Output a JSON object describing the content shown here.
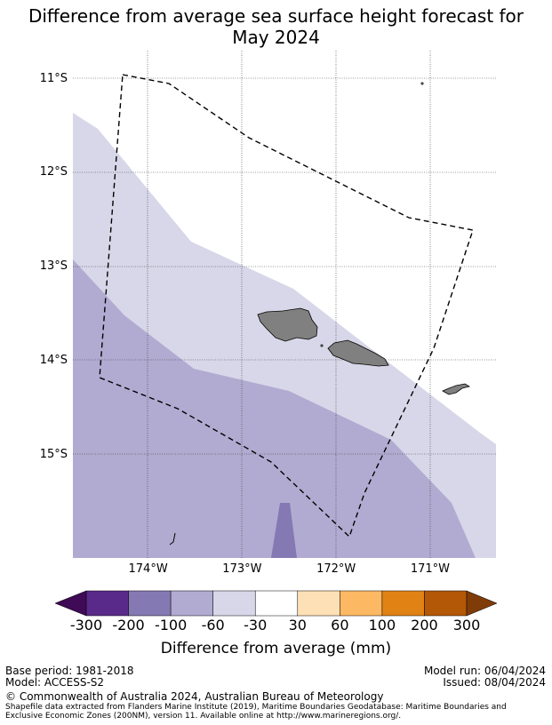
{
  "title_line1": "Difference from average sea surface height forecast for",
  "title_line2": "May 2024",
  "map": {
    "lat_labels": [
      {
        "value": -11,
        "text": "11°S"
      },
      {
        "value": -12,
        "text": "12°S"
      },
      {
        "value": -13,
        "text": "13°S"
      },
      {
        "value": -14,
        "text": "14°S"
      },
      {
        "value": -15,
        "text": "15°S"
      }
    ],
    "lon_labels": [
      {
        "value": -174,
        "text": "174°W"
      },
      {
        "value": -173,
        "text": "173°W"
      },
      {
        "value": -172,
        "text": "172°W"
      },
      {
        "value": -171,
        "text": "171°W"
      }
    ],
    "lon_range": [
      -174.8,
      -170.3
    ],
    "lat_range": [
      -16.1,
      -10.7
    ],
    "band_colors": {
      "minus_60_to_minus_30": "#d7d7e9",
      "minus_100_to_minus_60": "#b1abd1",
      "minus_200_to_minus_100": "#8579b3",
      "land": "#808080"
    }
  },
  "colorbar": {
    "label": "Difference from average (mm)",
    "ticks": [
      "-300",
      "-200",
      "-100",
      "-60",
      "-30",
      "30",
      "60",
      "100",
      "200",
      "300"
    ],
    "colors": [
      "#5a2a8a",
      "#8579b3",
      "#b1abd1",
      "#d7d7e9",
      "#ffffff",
      "#fee0b6",
      "#fdb863",
      "#e08214",
      "#b35806"
    ],
    "extend_low_color": "#3f0a56",
    "extend_high_color": "#7f3b08"
  },
  "footer": {
    "base_period": "Base period: 1981-2018",
    "model": "Model: ACCESS-S2",
    "model_run": "Model run: 06/04/2024",
    "issued": "Issued: 08/04/2024",
    "copyright": "© Commonwealth of Australia 2024, Australian Bureau of Meteorology",
    "shapefile_line1": "Shapefile data extracted from Flanders Marine Institute (2019), Maritime Boundaries Geodatabase: Maritime Boundaries and",
    "shapefile_line2": "Exclusive Economic Zones (200NM), version 11. Available online at http://www.marineregions.org/."
  }
}
